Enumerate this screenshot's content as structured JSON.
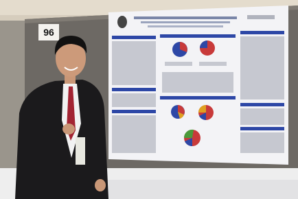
{
  "board_number": "96"
}
